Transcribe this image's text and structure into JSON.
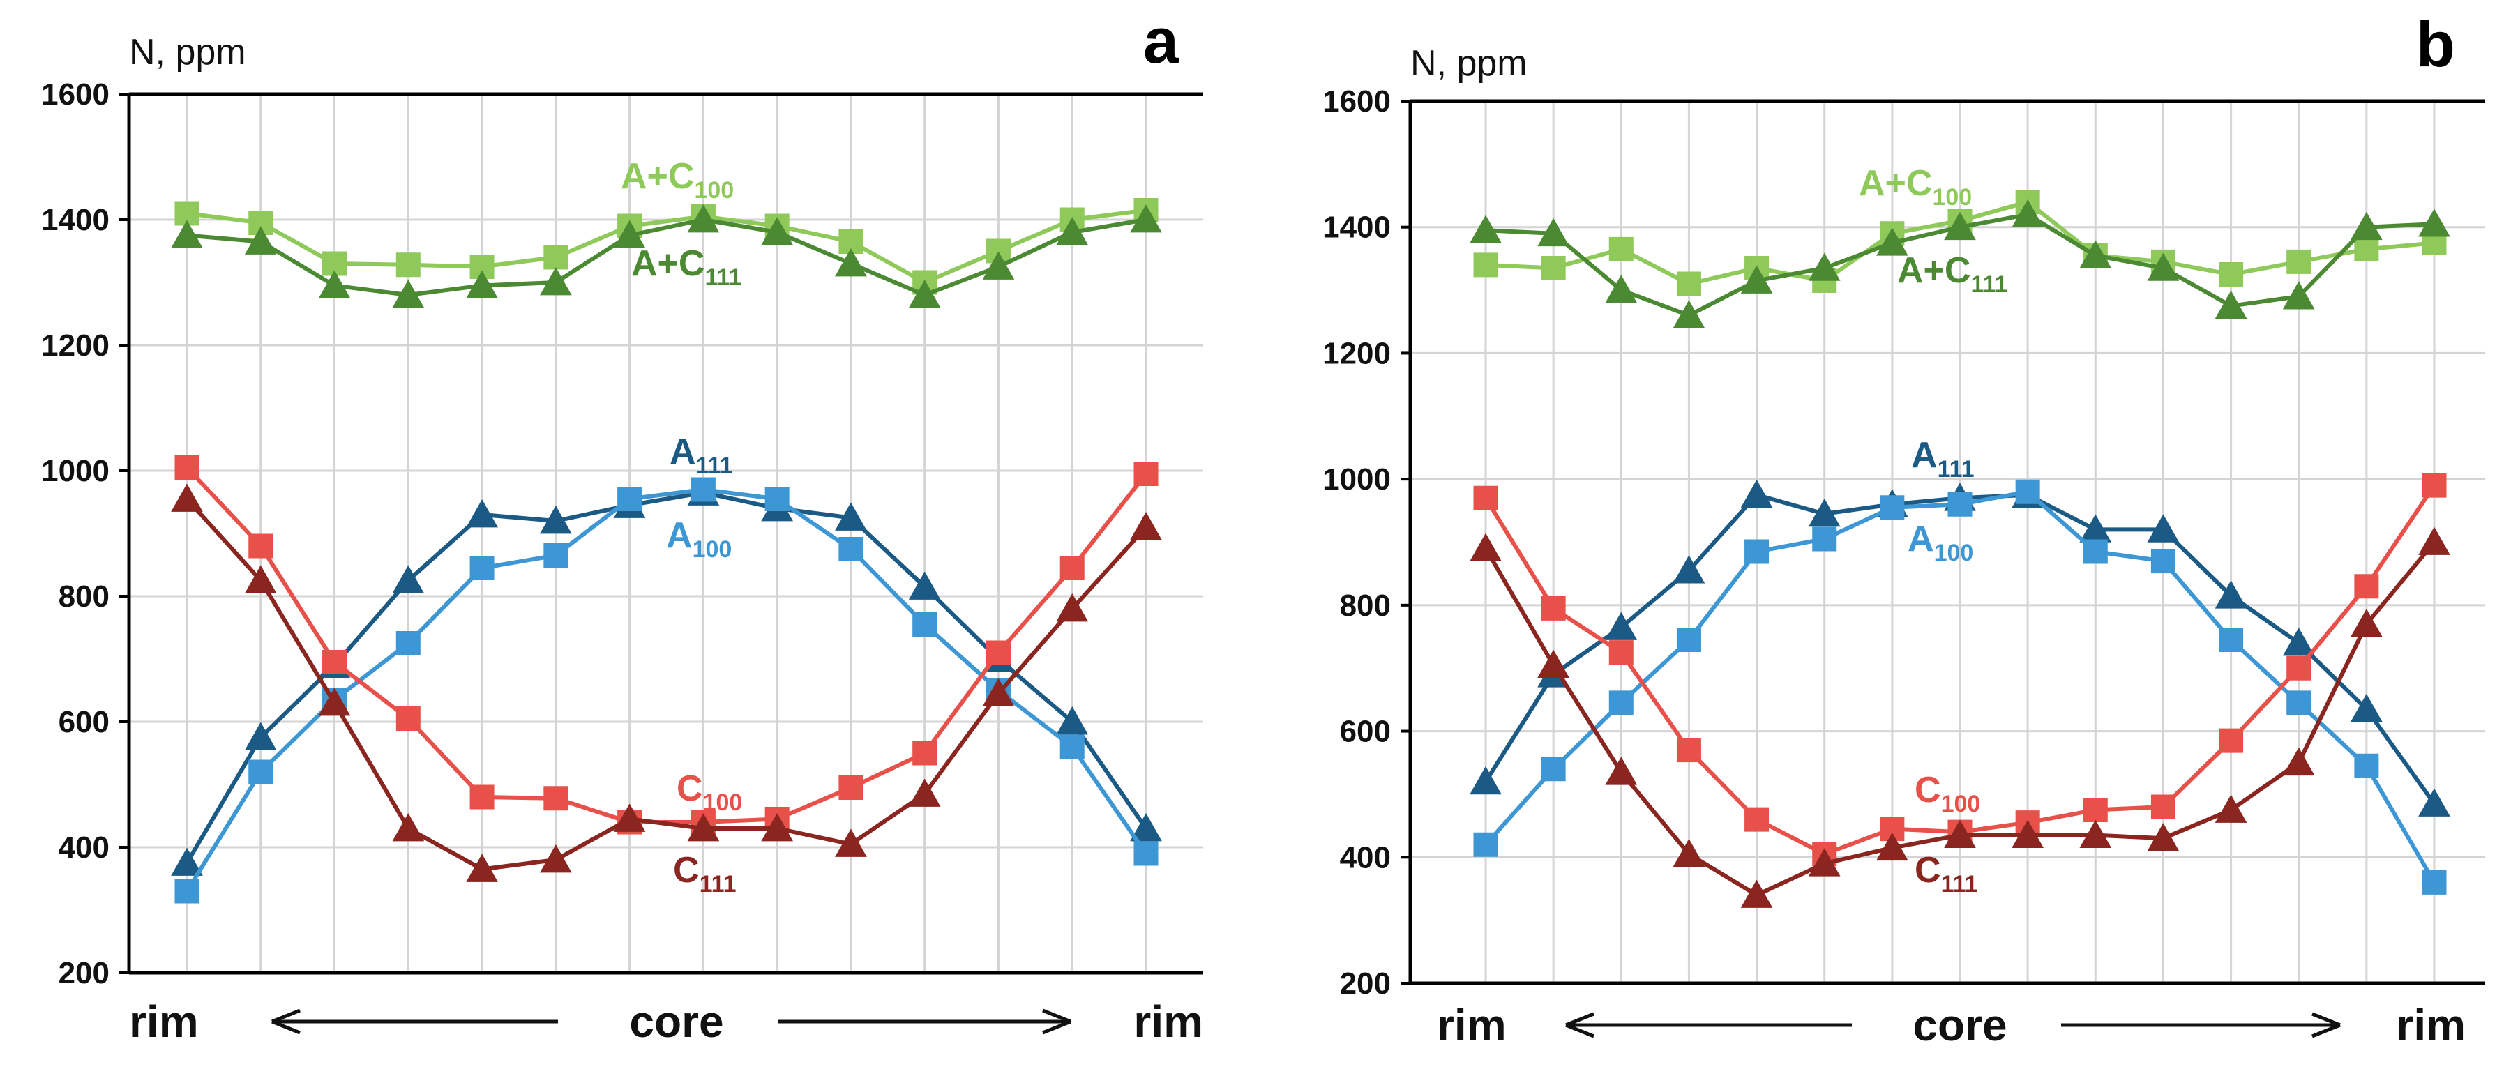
{
  "chart_data": [
    {
      "panel": "a",
      "type": "line",
      "ylabel": "N, ppm",
      "ylim": [
        200,
        1600
      ],
      "yticks": [
        200,
        400,
        600,
        800,
        1000,
        1200,
        1400,
        1600
      ],
      "xlabels": {
        "left": "rim",
        "center": "core",
        "right": "rim"
      },
      "grid": true,
      "series": [
        {
          "key": "ac100",
          "name": "A+C",
          "sub": "100",
          "color": "#8ec95a",
          "marker": "square",
          "values": [
            1410,
            1395,
            1330,
            1328,
            1325,
            1340,
            1390,
            1405,
            1390,
            1365,
            1300,
            1350,
            1400,
            1415
          ]
        },
        {
          "key": "ac111",
          "name": "A+C",
          "sub": "111",
          "color": "#4b8a33",
          "marker": "triangle",
          "values": [
            1375,
            1365,
            1295,
            1280,
            1295,
            1300,
            1375,
            1400,
            1380,
            1330,
            1280,
            1325,
            1380,
            1400
          ]
        },
        {
          "key": "a111",
          "name": "A",
          "sub": "111",
          "color": "#1c5a86",
          "marker": "triangle",
          "values": [
            375,
            575,
            690,
            825,
            930,
            920,
            945,
            965,
            940,
            925,
            815,
            700,
            600,
            430
          ]
        },
        {
          "key": "a100",
          "name": "A",
          "sub": "100",
          "color": "#3d97d4",
          "marker": "square",
          "values": [
            330,
            520,
            635,
            725,
            845,
            865,
            955,
            970,
            955,
            875,
            755,
            650,
            560,
            390
          ]
        },
        {
          "key": "c100",
          "name": "C",
          "sub": "100",
          "color": "#e8504a",
          "marker": "square",
          "values": [
            1005,
            880,
            695,
            605,
            480,
            478,
            440,
            440,
            445,
            495,
            550,
            710,
            845,
            995
          ]
        },
        {
          "key": "c111",
          "name": "C",
          "sub": "111",
          "color": "#8b2520",
          "marker": "triangle",
          "values": [
            955,
            825,
            630,
            430,
            365,
            380,
            445,
            430,
            430,
            405,
            485,
            645,
            780,
            910
          ]
        }
      ]
    },
    {
      "panel": "b",
      "type": "line",
      "ylabel": "N, ppm",
      "ylim": [
        200,
        1600
      ],
      "yticks": [
        200,
        400,
        600,
        800,
        1000,
        1200,
        1400,
        1600
      ],
      "xlabels": {
        "left": "rim",
        "center": "core",
        "right": "rim"
      },
      "grid": true,
      "series": [
        {
          "key": "ac100",
          "name": "A+C",
          "sub": "100",
          "color": "#8ec95a",
          "marker": "square",
          "values": [
            1340,
            1335,
            1365,
            1310,
            1335,
            1315,
            1390,
            1410,
            1440,
            1355,
            1345,
            1325,
            1345,
            1365,
            1375
          ]
        },
        {
          "key": "ac111",
          "name": "A+C",
          "sub": "111",
          "color": "#4b8a33",
          "marker": "triangle",
          "values": [
            1395,
            1390,
            1300,
            1260,
            1315,
            1335,
            1375,
            1400,
            1420,
            1355,
            1335,
            1275,
            1290,
            1400,
            1405
          ]
        },
        {
          "key": "a111",
          "name": "A",
          "sub": "111",
          "color": "#1c5a86",
          "marker": "triangle",
          "values": [
            520,
            690,
            765,
            855,
            975,
            945,
            960,
            970,
            975,
            920,
            920,
            815,
            740,
            635,
            485
          ]
        },
        {
          "key": "a100",
          "name": "A",
          "sub": "100",
          "color": "#3d97d4",
          "marker": "square",
          "values": [
            420,
            540,
            645,
            745,
            885,
            905,
            955,
            960,
            980,
            885,
            870,
            745,
            645,
            545,
            360
          ]
        },
        {
          "key": "c100",
          "name": "C",
          "sub": "100",
          "color": "#e8504a",
          "marker": "square",
          "values": [
            970,
            795,
            725,
            570,
            460,
            405,
            445,
            440,
            455,
            475,
            480,
            585,
            700,
            830,
            990
          ]
        },
        {
          "key": "c111",
          "name": "C",
          "sub": "111",
          "color": "#8b2520",
          "marker": "triangle",
          "values": [
            890,
            705,
            535,
            405,
            340,
            390,
            415,
            435,
            435,
            435,
            430,
            475,
            550,
            770,
            900
          ]
        }
      ]
    }
  ]
}
